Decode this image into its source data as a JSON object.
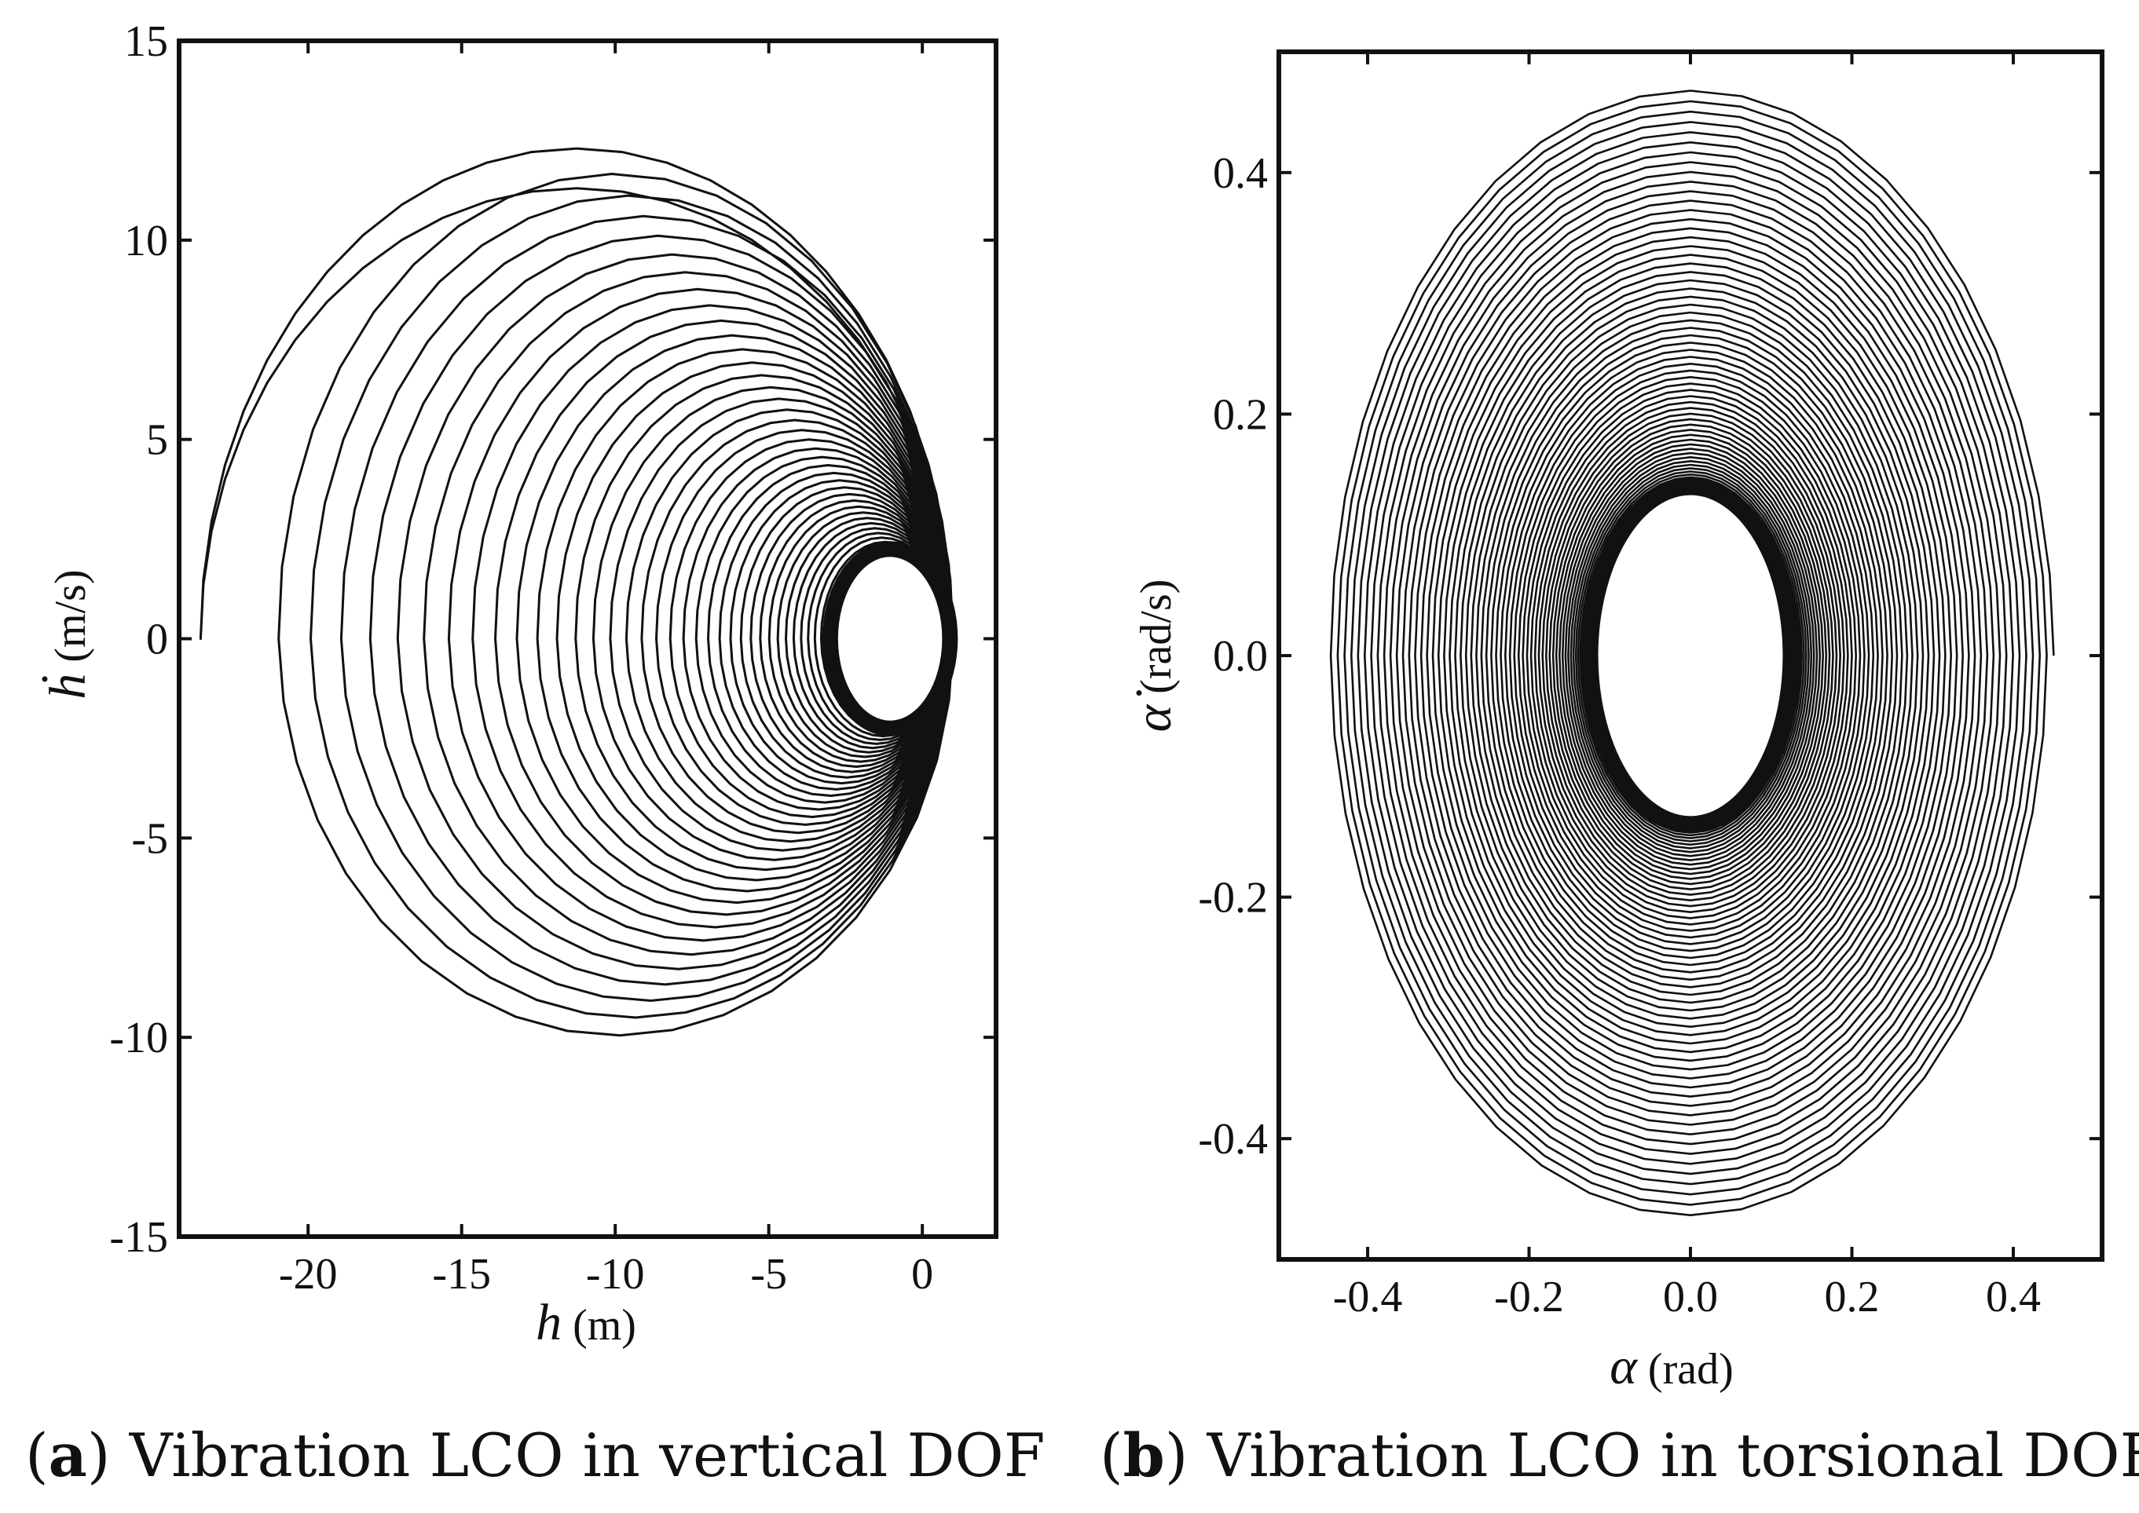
{
  "chart_data": [
    {
      "type": "line",
      "panel": "a",
      "caption_letter": "a",
      "caption_text": "Vibration LCO in vertical DOF",
      "xlabel_var": "h",
      "xlabel_unit": "(m)",
      "ylabel_var": "ḣ",
      "ylabel_unit": "(m/s)",
      "xlim": [
        -24.2,
        2.4
      ],
      "ylim": [
        -15,
        15
      ],
      "xticks": [
        -20,
        -15,
        -10,
        -5,
        0
      ],
      "xtick_labels": [
        "-20",
        "-15",
        "-10",
        "-5",
        "0"
      ],
      "yticks": [
        -15,
        -10,
        -5,
        0,
        5,
        10,
        15
      ],
      "ytick_labels": [
        "-15",
        "-10",
        "-5",
        "0",
        "5",
        "10",
        "15"
      ],
      "series": [
        {
          "name": "phase trajectory",
          "description": "decaying spiral converging onto the limit cycle",
          "initial_loop": {
            "x_min": -23.5,
            "x_max": 1.0,
            "y_max": 12.3,
            "y_min": -11.3
          },
          "spiral_start": {
            "x_min": -21.5,
            "x_max": 1.0,
            "y_max": 11.8,
            "y_min": -10.3
          },
          "limit_cycle": {
            "center_x": -1.05,
            "center_y": 0.0,
            "x_radius": 1.95,
            "y_radius": 2.25
          }
        }
      ]
    },
    {
      "type": "line",
      "panel": "b",
      "caption_letter": "b",
      "caption_text": "Vibration LCO in torsional DOF",
      "xlabel_var": "α",
      "xlabel_unit": "(rad)",
      "ylabel_var": "α̇",
      "ylabel_unit": "(rad/s)",
      "xlim": [
        -0.51,
        0.51
      ],
      "ylim": [
        -0.5,
        0.5
      ],
      "xticks": [
        -0.4,
        -0.2,
        0.0,
        0.2,
        0.4
      ],
      "xtick_labels": [
        "-0.4",
        "-0.2",
        "0.0",
        "0.2",
        "0.4"
      ],
      "yticks": [
        -0.4,
        -0.2,
        0.0,
        0.2,
        0.4
      ],
      "ytick_labels": [
        "-0.4",
        "-0.2",
        "0.0",
        "0.2",
        "0.4"
      ],
      "series": [
        {
          "name": "phase trajectory",
          "description": "decaying elliptical spiral converging onto the limit cycle",
          "outer_orbit": {
            "x_amplitude": 0.45,
            "y_amplitude": 0.47
          },
          "limit_cycle": {
            "x_amplitude": 0.125,
            "y_amplitude": 0.14
          }
        }
      ]
    }
  ]
}
